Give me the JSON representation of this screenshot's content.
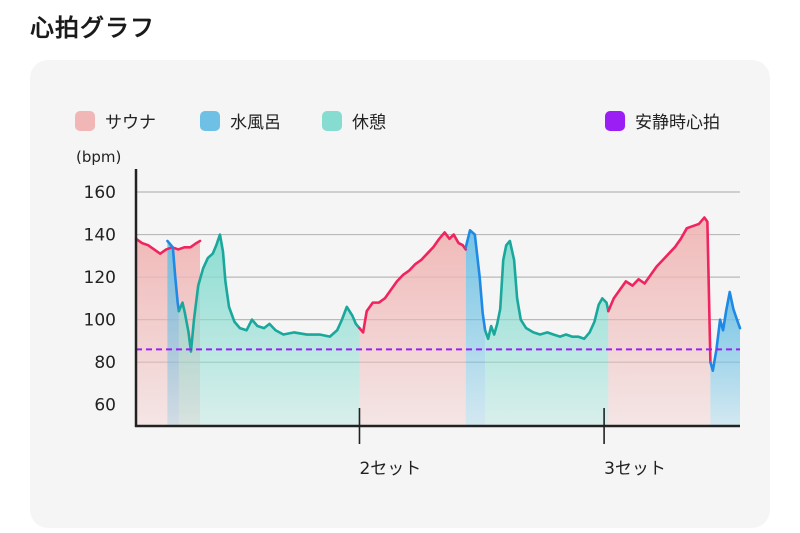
{
  "title": "心拍グラフ",
  "colors": {
    "sauna": "#f0b7b6",
    "cold": "#6ec1e4",
    "rest": "#86dcd0",
    "resting_hr": "#9b1ff5",
    "sauna_line": "#f0245e",
    "cold_line": "#1e8ae6",
    "rest_line": "#1aa79c"
  },
  "chart_data": {
    "type": "line",
    "ylabel": "(bpm)",
    "ylim": [
      50,
      168
    ],
    "yticks": [
      60,
      80,
      100,
      120,
      140,
      160
    ],
    "xlim": [
      0,
      100
    ],
    "grid": true,
    "legend_placement": "top",
    "legend": [
      {
        "key": "sauna",
        "label": "サウナ"
      },
      {
        "key": "cold",
        "label": "水風呂"
      },
      {
        "key": "rest",
        "label": "休憩"
      },
      {
        "key": "resting_hr",
        "label": "安静時心拍"
      }
    ],
    "set_markers": [
      {
        "x": 37,
        "label": "2セット"
      },
      {
        "x": 77.5,
        "label": "3セット"
      }
    ],
    "resting_hr": 86,
    "series": [
      {
        "phase": "sauna",
        "points": [
          [
            0,
            138
          ],
          [
            1,
            136
          ],
          [
            2,
            135
          ],
          [
            3,
            133
          ],
          [
            4,
            131
          ],
          [
            5,
            133
          ],
          [
            6,
            134
          ],
          [
            7,
            133
          ],
          [
            8,
            134
          ],
          [
            9,
            134
          ],
          [
            10,
            136
          ],
          [
            10.6,
            137
          ]
        ]
      },
      {
        "phase": "cold",
        "points": [
          [
            5.2,
            137
          ],
          [
            6.1,
            134
          ],
          [
            6.5,
            120
          ],
          [
            6.9,
            108
          ],
          [
            7.1,
            104
          ]
        ]
      },
      {
        "phase": "rest",
        "points": [
          [
            7.1,
            104
          ],
          [
            7.7,
            108
          ],
          [
            8.1,
            103
          ],
          [
            8.7,
            94
          ],
          [
            9.1,
            85
          ],
          [
            9.6,
            100
          ],
          [
            10.3,
            116
          ],
          [
            11.1,
            124
          ],
          [
            11.9,
            129
          ],
          [
            12.7,
            131
          ],
          [
            13.3,
            135
          ],
          [
            13.9,
            140
          ],
          [
            14.4,
            132
          ],
          [
            14.8,
            118
          ],
          [
            15.4,
            106
          ],
          [
            16.3,
            99
          ],
          [
            17.2,
            96
          ],
          [
            18.3,
            95
          ],
          [
            19.2,
            100
          ],
          [
            20.1,
            97
          ],
          [
            21.2,
            96
          ],
          [
            22.1,
            98
          ],
          [
            23.1,
            95
          ],
          [
            24.4,
            93
          ],
          [
            26.2,
            94
          ],
          [
            28.3,
            93
          ],
          [
            30.4,
            93
          ],
          [
            32.1,
            92
          ],
          [
            33.3,
            95
          ],
          [
            34.1,
            100
          ],
          [
            34.9,
            106
          ],
          [
            35.8,
            102
          ],
          [
            36.4,
            98
          ],
          [
            37,
            96
          ]
        ]
      },
      {
        "phase": "sauna",
        "points": [
          [
            37,
            96
          ],
          [
            37.6,
            94
          ],
          [
            38.2,
            104
          ],
          [
            39.2,
            108
          ],
          [
            40.2,
            108
          ],
          [
            41.2,
            110
          ],
          [
            42.2,
            114
          ],
          [
            43.2,
            118
          ],
          [
            44.2,
            121
          ],
          [
            45.2,
            123
          ],
          [
            46.2,
            126
          ],
          [
            47.2,
            128
          ],
          [
            48.2,
            131
          ],
          [
            49.2,
            134
          ],
          [
            50.2,
            138
          ],
          [
            51.1,
            141
          ],
          [
            51.9,
            138
          ],
          [
            52.6,
            140
          ],
          [
            53.4,
            136
          ],
          [
            54.1,
            135
          ],
          [
            54.6,
            133
          ]
        ]
      },
      {
        "phase": "cold",
        "points": [
          [
            54.6,
            134
          ],
          [
            55.3,
            142
          ],
          [
            56.1,
            140
          ],
          [
            56.9,
            120
          ],
          [
            57.4,
            103
          ],
          [
            57.8,
            95
          ]
        ]
      },
      {
        "phase": "rest",
        "points": [
          [
            57.8,
            95
          ],
          [
            58.3,
            91
          ],
          [
            58.8,
            97
          ],
          [
            59.3,
            93
          ],
          [
            59.8,
            98
          ],
          [
            60.3,
            105
          ],
          [
            60.8,
            128
          ],
          [
            61.3,
            135
          ],
          [
            61.9,
            137
          ],
          [
            62.6,
            128
          ],
          [
            63.1,
            110
          ],
          [
            63.7,
            100
          ],
          [
            64.6,
            96
          ],
          [
            65.8,
            94
          ],
          [
            66.9,
            93
          ],
          [
            68.1,
            94
          ],
          [
            69.1,
            93
          ],
          [
            70.2,
            92
          ],
          [
            71.2,
            93
          ],
          [
            72.2,
            92
          ],
          [
            73.2,
            92
          ],
          [
            74.2,
            91
          ],
          [
            75.1,
            94
          ],
          [
            75.9,
            99
          ],
          [
            76.6,
            107
          ],
          [
            77.2,
            110
          ],
          [
            77.9,
            108
          ],
          [
            78.2,
            104
          ]
        ]
      },
      {
        "phase": "sauna",
        "points": [
          [
            78.2,
            104
          ],
          [
            79.1,
            110
          ],
          [
            80.1,
            114
          ],
          [
            81.1,
            118
          ],
          [
            82.2,
            116
          ],
          [
            83.2,
            119
          ],
          [
            84.2,
            117
          ],
          [
            85.2,
            121
          ],
          [
            86.2,
            125
          ],
          [
            87.2,
            128
          ],
          [
            88.2,
            131
          ],
          [
            89.2,
            134
          ],
          [
            90.2,
            138
          ],
          [
            91.2,
            143
          ],
          [
            92.2,
            144
          ],
          [
            93.2,
            145
          ],
          [
            94.1,
            148
          ],
          [
            94.6,
            146
          ],
          [
            95.1,
            80
          ]
        ]
      },
      {
        "phase": "cold",
        "points": [
          [
            95.1,
            80
          ],
          [
            95.5,
            76
          ],
          [
            96.1,
            86
          ],
          [
            96.7,
            100
          ],
          [
            97.2,
            95
          ],
          [
            97.7,
            104
          ],
          [
            98.3,
            113
          ],
          [
            98.9,
            105
          ],
          [
            99.5,
            100
          ],
          [
            100,
            96
          ]
        ]
      }
    ]
  }
}
